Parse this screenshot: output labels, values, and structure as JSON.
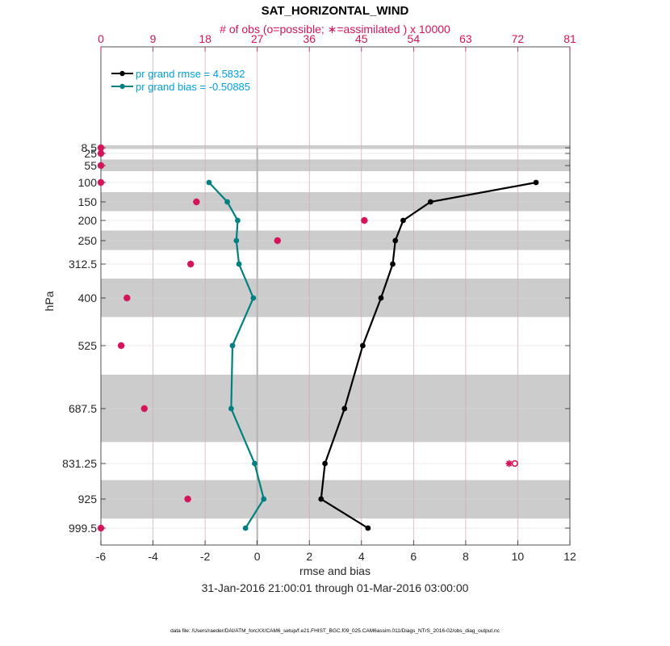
{
  "chart_data": {
    "type": "line",
    "title": "SAT_HORIZONTAL_WIND",
    "top_axis_label": "# of obs (o=possible; ∗=assimilated ) x 10000",
    "xlabel": "rmse and bias",
    "ylabel": "hPa",
    "date_range": "31-Jan-2016 21:00:01 through 01-Mar-2016 03:00:00",
    "footer": "data file: /Users/raeder/DAI/ATM_forcXX/CAM6_setup/f.e21.FHIST_BGC.f09_025.CAM6assim.011/Diags_NTrS_2016-02/obs_diag_output.nc",
    "xlim": [
      -6,
      12
    ],
    "x_ticks": [
      -6,
      -4,
      -2,
      0,
      2,
      4,
      6,
      8,
      10,
      12
    ],
    "top_xlim": [
      0,
      81
    ],
    "top_ticks": [
      0,
      9,
      18,
      27,
      36,
      45,
      54,
      63,
      72,
      81
    ],
    "levels": [
      8.5,
      25,
      55,
      100,
      150,
      200,
      250,
      312.5,
      400,
      525,
      687.5,
      831.25,
      925,
      999.5
    ],
    "level_labels": [
      "8.5",
      "25",
      "55",
      "100",
      "150",
      "200",
      "250",
      "312.5",
      "400",
      "525",
      "687.5",
      "831.25",
      "925",
      "999.5"
    ],
    "shaded_bands_hPa": [
      [
        5,
        12
      ],
      [
        40,
        70
      ],
      [
        125,
        175
      ],
      [
        225,
        275
      ],
      [
        350,
        450
      ],
      [
        600,
        775
      ],
      [
        875,
        975
      ]
    ],
    "series": [
      {
        "name": "pr grand rmse = 4.5832",
        "color": "#000000",
        "levels": [
          100,
          150,
          200,
          250,
          312.5,
          400,
          525,
          687.5,
          831.25,
          925,
          999.5
        ],
        "values": [
          10.7,
          6.65,
          5.6,
          5.3,
          5.2,
          4.75,
          4.05,
          3.35,
          2.6,
          2.45,
          4.25
        ]
      },
      {
        "name": "pr grand bias = -0.50885",
        "color": "#008080",
        "levels": [
          100,
          150,
          200,
          250,
          312.5,
          400,
          525,
          687.5,
          831.25,
          925,
          999.5
        ],
        "values": [
          -1.85,
          -1.15,
          -0.75,
          -0.8,
          -0.7,
          -0.15,
          -0.95,
          -1.0,
          -0.1,
          0.25,
          -0.45
        ]
      }
    ],
    "obs_assimilated": {
      "levels": [
        8.5,
        25,
        55,
        100,
        150,
        200,
        250,
        312.5,
        400,
        525,
        687.5,
        831.25,
        925,
        999.5
      ],
      "values": [
        0,
        0,
        0,
        0,
        16.5,
        45.5,
        30.5,
        15.5,
        4.5,
        3.5,
        7.5,
        70.5,
        15,
        0
      ]
    },
    "obs_possible": {
      "levels": [
        8.5,
        25,
        55,
        100,
        150,
        200,
        250,
        312.5,
        400,
        525,
        687.5,
        831.25,
        925,
        999.5
      ],
      "values": [
        0,
        0,
        0,
        0,
        16.5,
        45.5,
        30.5,
        15.5,
        4.5,
        3.5,
        7.5,
        71.5,
        15,
        0
      ]
    },
    "colors": {
      "rmse": "#000000",
      "bias": "#008080",
      "obs": "#d4145a",
      "legend_text": "#00a0e0",
      "band": "#cccccc",
      "grid": "#d9a3b8",
      "axis": "#262626"
    }
  }
}
